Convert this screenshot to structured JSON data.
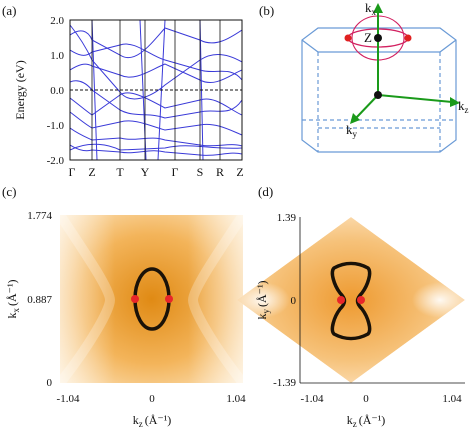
{
  "panels": {
    "a": {
      "label": "(a)",
      "ylabel": "Energy (eV)",
      "yticks": [
        "2.0",
        "1.0",
        "0.0",
        "-1.0",
        "-2.0"
      ],
      "kpoints": [
        "Γ",
        "Z",
        "T",
        "Y",
        "Γ",
        "S",
        "R",
        "Z"
      ]
    },
    "b": {
      "label": "(b)",
      "axis_x": "x",
      "axis_y": "y",
      "axis_z": "z",
      "point": "Z"
    },
    "c": {
      "label": "(c)",
      "yticks": [
        "1.774",
        "0.887",
        "0"
      ],
      "xticks": [
        "-1.04",
        "0",
        "1.04"
      ],
      "ylabel_base": "k",
      "ylabel_sub": "x",
      "ylabel_unit": "(Å⁻¹)",
      "xlabel_base": "k",
      "xlabel_sub": "z",
      "xlabel_unit": "(Å⁻¹)"
    },
    "d": {
      "label": "(d)",
      "yticks": [
        "1.39",
        "0",
        "-1.39"
      ],
      "xticks": [
        "-1.04",
        "0",
        "1.04"
      ],
      "ylabel_base": "k",
      "ylabel_sub": "y",
      "ylabel_unit": "(Å⁻¹)",
      "xlabel_base": "k",
      "xlabel_sub": "z",
      "xlabel_unit": "(Å⁻¹)"
    }
  },
  "colors": {
    "bands": "#3a3ad8",
    "accent": "#e8a020",
    "node": "#e02020",
    "axis": "#1a9a1a"
  }
}
